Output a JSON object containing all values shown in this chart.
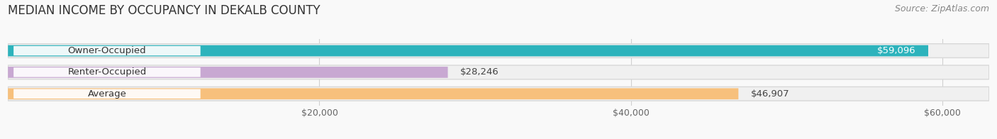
{
  "title": "MEDIAN INCOME BY OCCUPANCY IN DEKALB COUNTY",
  "source": "Source: ZipAtlas.com",
  "categories": [
    "Owner-Occupied",
    "Renter-Occupied",
    "Average"
  ],
  "values": [
    59096,
    28246,
    46907
  ],
  "value_labels": [
    "$59,096",
    "$28,246",
    "$46,907"
  ],
  "bar_colors": [
    "#2db3bc",
    "#c8a8d2",
    "#f7c07c"
  ],
  "track_facecolor": "#f0f0f0",
  "track_edgecolor": "#d8d8d8",
  "xmax": 63000,
  "xticks": [
    20000,
    40000,
    60000
  ],
  "xticklabels": [
    "$20,000",
    "$40,000",
    "$60,000"
  ],
  "title_fontsize": 12,
  "source_fontsize": 9,
  "bar_label_fontsize": 9.5,
  "category_label_fontsize": 9.5,
  "background_color": "#f9f9f9",
  "value_label_inside_threshold": 50000
}
